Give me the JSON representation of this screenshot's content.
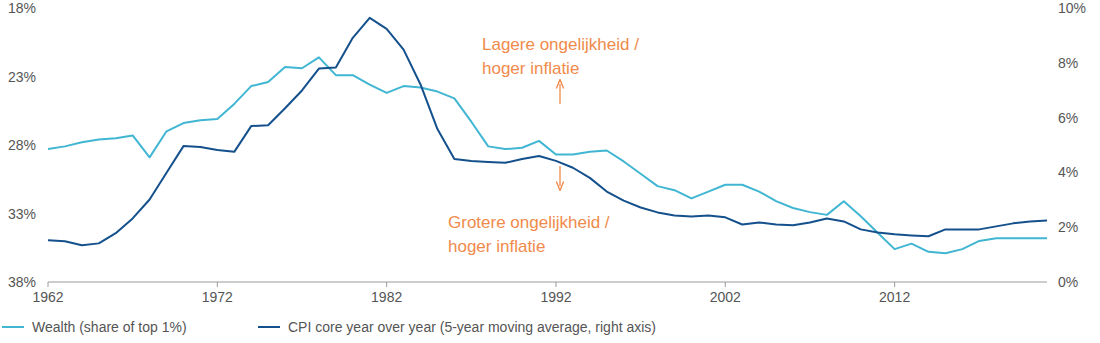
{
  "chart_data": {
    "type": "line",
    "x": [
      1962,
      1963,
      1964,
      1965,
      1966,
      1967,
      1968,
      1969,
      1970,
      1971,
      1972,
      1973,
      1974,
      1975,
      1976,
      1977,
      1978,
      1979,
      1980,
      1981,
      1982,
      1983,
      1984,
      1985,
      1986,
      1987,
      1988,
      1989,
      1990,
      1991,
      1992,
      1993,
      1994,
      1995,
      1996,
      1997,
      1998,
      1999,
      2000,
      2001,
      2002,
      2003,
      2004,
      2005,
      2006,
      2007,
      2008,
      2009,
      2010,
      2011,
      2012,
      2013,
      2014,
      2015,
      2016,
      2017,
      2018,
      2019,
      2020,
      2021
    ],
    "series": [
      {
        "name": "Wealth (share of top 1%)",
        "color": "#41b6d2",
        "values": [
          28.3,
          28.1,
          27.8,
          27.6,
          27.5,
          27.3,
          28.9,
          27.0,
          26.4,
          26.2,
          26.1,
          25.0,
          23.7,
          23.4,
          22.3,
          22.4,
          21.6,
          22.9,
          22.9,
          23.6,
          24.2,
          23.7,
          23.8,
          24.1,
          24.6,
          26.3,
          28.1,
          28.3,
          28.2,
          27.7,
          28.7,
          28.7,
          28.5,
          28.4,
          29.2,
          30.1,
          31.0,
          31.3,
          31.9,
          31.4,
          30.9,
          30.9,
          31.4,
          32.1,
          32.6,
          32.9,
          33.1,
          32.1,
          33.2,
          34.4,
          35.6,
          35.2,
          35.8,
          35.9,
          35.6,
          35.0,
          34.8,
          34.8,
          34.8,
          34.8
        ]
      },
      {
        "name": "CPI core year over year (5-year moving average, right axis)",
        "color": "#14508c",
        "axis": "y2",
        "values": [
          1.52,
          1.49,
          1.34,
          1.41,
          1.78,
          2.32,
          3.01,
          3.99,
          4.96,
          4.93,
          4.82,
          4.75,
          5.69,
          5.72,
          6.34,
          6.99,
          7.79,
          7.83,
          8.91,
          9.64,
          9.24,
          8.48,
          7.21,
          5.58,
          4.49,
          4.42,
          4.38,
          4.35,
          4.49,
          4.6,
          4.42,
          4.17,
          3.8,
          3.3,
          2.97,
          2.72,
          2.54,
          2.43,
          2.39,
          2.43,
          2.36,
          2.1,
          2.17,
          2.1,
          2.07,
          2.17,
          2.32,
          2.21,
          1.92,
          1.81,
          1.74,
          1.7,
          1.67,
          1.92,
          1.92,
          1.92,
          2.03,
          2.14,
          2.21,
          2.24
        ]
      }
    ],
    "xlim": [
      1962,
      2021
    ],
    "xticks": [
      1962,
      1972,
      1982,
      1992,
      2002,
      2012
    ],
    "ylim": [
      38,
      18
    ],
    "yticks": [
      {
        "value": 18,
        "label": "18%"
      },
      {
        "value": 23,
        "label": "23%"
      },
      {
        "value": 28,
        "label": "28%"
      },
      {
        "value": 33,
        "label": "33%"
      },
      {
        "value": 38,
        "label": "38%"
      }
    ],
    "y2lim": [
      0,
      10
    ],
    "y2ticks": [
      {
        "value": 0,
        "label": "0%"
      },
      {
        "value": 2,
        "label": "2%"
      },
      {
        "value": 4,
        "label": "4%"
      },
      {
        "value": 6,
        "label": "6%"
      },
      {
        "value": 8,
        "label": "8%"
      },
      {
        "value": 10,
        "label": "10%"
      }
    ],
    "annotations": [
      [
        "Lagere ongelijkheid /",
        "hoger inflatie"
      ],
      [
        "Grotere ongelijkheid /",
        "hoger inflatie"
      ]
    ],
    "legend": "bottom-left",
    "grid": false
  }
}
